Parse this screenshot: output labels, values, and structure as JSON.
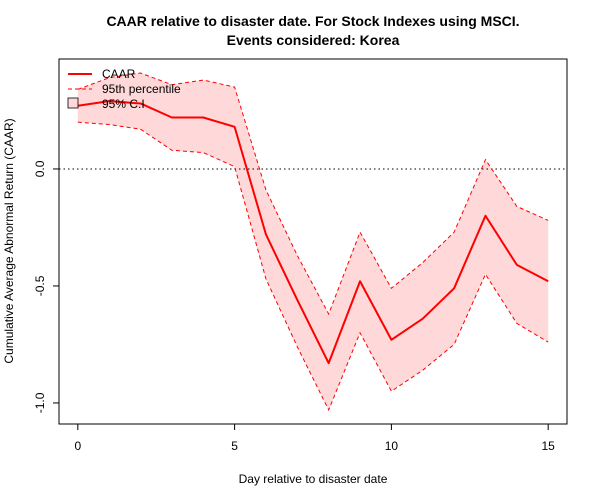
{
  "chart_data": {
    "type": "line",
    "title_line1": "CAAR relative to disaster date. For Stock Indexes using MSCI.",
    "title_line2": "Events considered: Korea",
    "xlabel": "Day relative to disaster date",
    "ylabel": "Cumulative Average Abnormal Return (CAAR)",
    "xlim": [
      -0.6,
      15.6
    ],
    "ylim": [
      -1.09,
      0.47
    ],
    "x_ticks": [
      0,
      5,
      10,
      15
    ],
    "x_tick_labels": [
      "0",
      "5",
      "10",
      "15"
    ],
    "y_ticks": [
      0.0,
      -0.5,
      -1.0
    ],
    "y_tick_labels": [
      "0.0",
      "-0.5",
      "-1.0"
    ],
    "reference_line": 0.0,
    "grid": false,
    "legend_position": "top-left",
    "x": [
      0,
      1,
      2,
      3,
      4,
      5,
      6,
      7,
      8,
      9,
      10,
      11,
      12,
      13,
      14,
      15
    ],
    "series": [
      {
        "name": "CAAR",
        "values": [
          0.27,
          0.29,
          0.28,
          0.22,
          0.22,
          0.18,
          -0.28,
          -0.56,
          -0.83,
          -0.48,
          -0.73,
          -0.64,
          -0.51,
          -0.2,
          -0.41,
          -0.48
        ]
      },
      {
        "name": "95th percentile",
        "upper": [
          0.34,
          0.39,
          0.41,
          0.36,
          0.38,
          0.35,
          -0.09,
          -0.37,
          -0.62,
          -0.27,
          -0.51,
          -0.4,
          -0.27,
          0.04,
          -0.16,
          -0.22
        ],
        "lower": [
          0.2,
          0.19,
          0.17,
          0.08,
          0.07,
          0.01,
          -0.47,
          -0.76,
          -1.03,
          -0.7,
          -0.95,
          -0.86,
          -0.75,
          -0.45,
          -0.66,
          -0.74
        ]
      }
    ],
    "band_name": "95% C.I",
    "colors": {
      "line": "#ff0000",
      "band_fill": "#ffd9d9",
      "reference": "#000000",
      "frame": "#000000"
    }
  }
}
